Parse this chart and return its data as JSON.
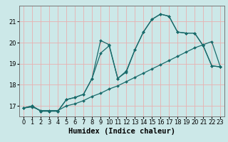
{
  "xlabel": "Humidex (Indice chaleur)",
  "bg_color": "#cce8e8",
  "grid_color": "#e8b0b0",
  "line_color": "#1a6b6b",
  "xlim": [
    -0.5,
    23.5
  ],
  "ylim": [
    16.5,
    21.75
  ],
  "yticks": [
    17,
    18,
    19,
    20,
    21
  ],
  "xticks": [
    0,
    1,
    2,
    3,
    4,
    5,
    6,
    7,
    8,
    9,
    10,
    11,
    12,
    13,
    14,
    15,
    16,
    17,
    18,
    19,
    20,
    21,
    22,
    23
  ],
  "line1_y": [
    16.9,
    17.0,
    16.75,
    16.75,
    16.75,
    17.3,
    17.4,
    17.55,
    18.3,
    19.5,
    19.85,
    18.3,
    18.6,
    19.65,
    20.5,
    21.1,
    21.35,
    21.25,
    20.5,
    20.45,
    20.45,
    19.85,
    18.9,
    18.85
  ],
  "line2_y": [
    16.9,
    17.0,
    16.75,
    16.75,
    16.75,
    17.3,
    17.4,
    17.55,
    18.3,
    20.1,
    19.9,
    18.3,
    18.65,
    19.65,
    20.5,
    21.1,
    21.35,
    21.25,
    20.5,
    20.45,
    20.45,
    19.85,
    18.9,
    18.85
  ],
  "line3_y": [
    16.9,
    16.95,
    16.78,
    16.78,
    16.78,
    17.0,
    17.1,
    17.25,
    17.45,
    17.6,
    17.8,
    17.95,
    18.15,
    18.35,
    18.55,
    18.75,
    18.95,
    19.15,
    19.35,
    19.55,
    19.75,
    19.9,
    20.05,
    18.85
  ],
  "marker": "D",
  "markersize": 2,
  "linewidth": 0.9,
  "tick_fontsize": 6,
  "xlabel_fontsize": 7.5
}
